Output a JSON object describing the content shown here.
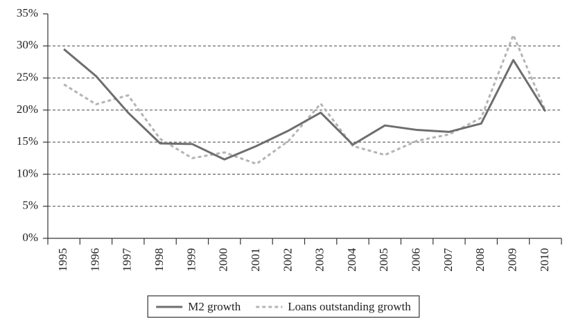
{
  "chart_data": {
    "type": "line",
    "categories": [
      "1995",
      "1996",
      "1997",
      "1998",
      "1999",
      "2000",
      "2001",
      "2002",
      "2003",
      "2004",
      "2005",
      "2006",
      "2007",
      "2008",
      "2009",
      "2010"
    ],
    "series": [
      {
        "name": "M2 growth",
        "color": "#6e6e6e",
        "dash": false,
        "values": [
          29.5,
          25.3,
          19.6,
          14.8,
          14.7,
          12.3,
          14.4,
          16.8,
          19.6,
          14.6,
          17.6,
          16.9,
          16.6,
          17.9,
          27.8,
          19.8
        ]
      },
      {
        "name": "Loans outstanding growth",
        "color": "#b4b4b4",
        "dash": true,
        "values": [
          24.0,
          20.9,
          22.3,
          15.5,
          12.5,
          13.4,
          11.6,
          15.2,
          21.0,
          14.4,
          13.0,
          15.2,
          16.2,
          18.8,
          31.7,
          19.9
        ]
      }
    ],
    "ylim": [
      0,
      35
    ],
    "yticks": [
      {
        "value": 0,
        "label": "0%"
      },
      {
        "value": 5,
        "label": "5%"
      },
      {
        "value": 10,
        "label": "10%"
      },
      {
        "value": 15,
        "label": "15%"
      },
      {
        "value": 20,
        "label": "20%"
      },
      {
        "value": 25,
        "label": "25%"
      },
      {
        "value": 30,
        "label": "30%"
      },
      {
        "value": 35,
        "label": "35%"
      }
    ],
    "grid": true,
    "legend": "bottom"
  }
}
